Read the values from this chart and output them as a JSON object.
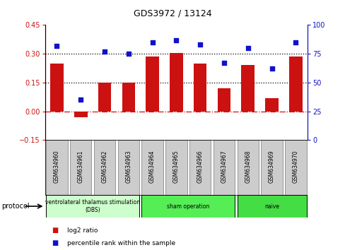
{
  "title": "GDS3972 / 13124",
  "samples": [
    "GSM634960",
    "GSM634961",
    "GSM634962",
    "GSM634963",
    "GSM634964",
    "GSM634965",
    "GSM634966",
    "GSM634967",
    "GSM634968",
    "GSM634969",
    "GSM634970"
  ],
  "log2_ratio": [
    0.25,
    -0.03,
    0.15,
    0.15,
    0.285,
    0.305,
    0.25,
    0.12,
    0.24,
    0.07,
    0.285
  ],
  "percentile_rank": [
    82,
    35,
    77,
    75,
    85,
    87,
    83,
    67,
    80,
    62,
    85
  ],
  "ylim_left": [
    -0.15,
    0.45
  ],
  "ylim_right": [
    0,
    100
  ],
  "yticks_left": [
    -0.15,
    0,
    0.15,
    0.3,
    0.45
  ],
  "yticks_right": [
    0,
    25,
    50,
    75,
    100
  ],
  "hlines": [
    0.15,
    0.3
  ],
  "bar_color": "#cc1111",
  "dot_color": "#1111cc",
  "zero_line_color": "#cc1111",
  "dotted_line_color": "black",
  "protocol_groups": [
    {
      "label": "ventrolateral thalamus stimulation\n(DBS)",
      "start": 0,
      "end": 3,
      "color": "#ccffcc"
    },
    {
      "label": "sham operation",
      "start": 4,
      "end": 7,
      "color": "#55ee55"
    },
    {
      "label": "naive",
      "start": 8,
      "end": 10,
      "color": "#44dd44"
    }
  ],
  "legend_items": [
    {
      "label": "log2 ratio",
      "color": "#cc1111"
    },
    {
      "label": "percentile rank within the sample",
      "color": "#1111cc"
    }
  ],
  "protocol_label": "protocol",
  "bar_width": 0.55
}
